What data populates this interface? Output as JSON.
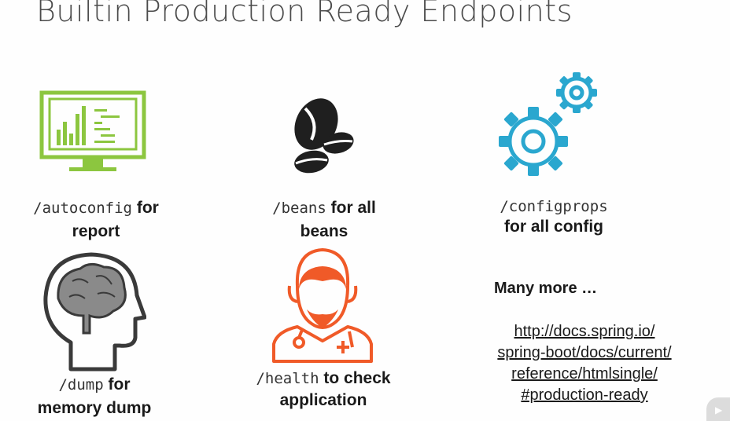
{
  "slide": {
    "title": "Builtin Production Ready Endpoints"
  },
  "items": {
    "autoconfig": {
      "code": "/autoconfig",
      "suffix": "for",
      "line2": "report",
      "icon": "monitor-chart-icon",
      "color": "#8cc63f"
    },
    "beans": {
      "code": "/beans",
      "suffix": "for all",
      "line2": "beans",
      "icon": "coffee-beans-icon",
      "color": "#1f1f1f"
    },
    "configprops": {
      "code": "/configprops",
      "line2": "for all config",
      "icon": "gears-icon",
      "color": "#2aa7cf"
    },
    "dump": {
      "code": "/dump",
      "suffix": "for",
      "line2": "memory dump",
      "icon": "head-brain-icon",
      "color": "#3a3a3a"
    },
    "health": {
      "code": "/health",
      "suffix": "to check",
      "line2": "application",
      "icon": "doctor-icon",
      "color": "#f05a28"
    }
  },
  "more": {
    "label": "Many more …",
    "link_lines": [
      "http://docs.spring.io/",
      "spring-boot/docs/current/",
      "reference/htmlsingle/",
      "#production-ready"
    ]
  },
  "player": {
    "icon": "play-icon"
  }
}
